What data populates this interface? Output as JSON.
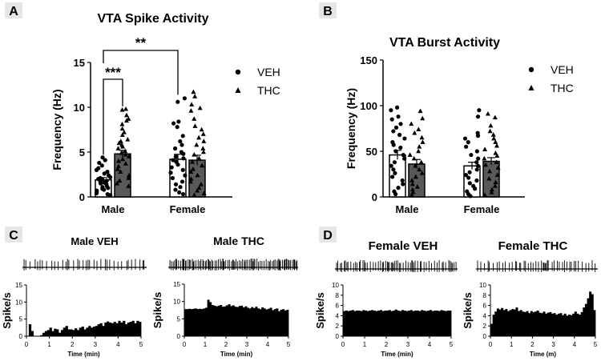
{
  "chart_data": [
    {
      "panel": "A",
      "type": "bar",
      "title": "VTA Spike Activity",
      "ylabel": "Frequency (Hz)",
      "xlabel": "",
      "categories": [
        "Male",
        "Female"
      ],
      "ylim": [
        0,
        15
      ],
      "yticks": [
        0,
        5,
        10,
        15
      ],
      "legend": {
        "placement": "right",
        "entries": [
          {
            "name": "VEH",
            "marker": "circle"
          },
          {
            "name": "THC",
            "marker": "triangle"
          }
        ]
      },
      "series": [
        {
          "name": "VEH",
          "color": "#ffffff",
          "values": [
            1.9,
            4.2
          ],
          "sem": [
            0.25,
            0.55
          ],
          "points": [
            [
              4.4,
              4.1,
              3.8,
              3.5,
              3.2,
              3.0,
              2.8,
              2.6,
              2.4,
              2.2,
              2.1,
              2.0,
              1.9,
              1.8,
              1.7,
              1.6,
              1.5,
              1.4,
              1.2,
              1.1,
              1.0,
              0.9,
              0.8,
              0.7,
              0.5,
              0.4,
              0.3,
              0.2
            ],
            [
              11.0,
              10.6,
              8.4,
              8.2,
              7.8,
              6.8,
              6.2,
              5.8,
              5.4,
              5.0,
              4.8,
              4.5,
              4.3,
              4.1,
              3.9,
              3.6,
              3.3,
              3.0,
              2.7,
              2.4,
              2.1,
              1.7,
              1.4,
              1.1,
              0.8,
              0.5,
              0.3
            ]
          ]
        },
        {
          "name": "THC",
          "color": "#595959",
          "values": [
            4.8,
            4.1
          ],
          "sem": [
            0.4,
            0.55
          ],
          "points": [
            [
              9.8,
              9.7,
              9.1,
              8.7,
              8.5,
              8.1,
              7.6,
              7.2,
              6.9,
              6.4,
              6.2,
              6.0,
              5.8,
              5.6,
              5.4,
              5.1,
              4.9,
              4.7,
              4.5,
              4.2,
              4.0,
              3.7,
              3.4,
              3.1,
              2.8,
              2.4,
              2.1,
              1.8,
              1.5,
              1.2
            ],
            [
              11.7,
              11.2,
              10.3,
              9.9,
              9.6,
              8.7,
              7.9,
              7.5,
              7.0,
              6.6,
              6.2,
              5.8,
              5.4,
              5.0,
              4.7,
              4.3,
              3.9,
              3.5,
              3.1,
              2.8,
              2.4,
              2.0,
              1.7,
              1.4,
              1.0,
              0.7,
              0.4,
              0.2
            ]
          ]
        }
      ],
      "annotations": [
        {
          "text": "***",
          "from": "Male VEH",
          "to": "Male THC"
        },
        {
          "text": "**",
          "from": "Male VEH",
          "to": "Female VEH"
        }
      ]
    },
    {
      "panel": "B",
      "type": "bar",
      "title": "VTA Burst Activity",
      "ylabel": "Frequency (Hz)",
      "xlabel": "",
      "categories": [
        "Male",
        "Female"
      ],
      "ylim": [
        0,
        150
      ],
      "yticks": [
        0,
        50,
        100,
        150
      ],
      "legend": {
        "placement": "right",
        "entries": [
          {
            "name": "VEH",
            "marker": "circle"
          },
          {
            "name": "THC",
            "marker": "triangle"
          }
        ]
      },
      "series": [
        {
          "name": "VEH",
          "color": "#ffffff",
          "values": [
            46,
            34
          ],
          "sem": [
            5,
            4
          ],
          "points": [
            [
              98,
              95,
              88,
              85,
              80,
              76,
              72,
              68,
              64,
              60,
              57,
              54,
              50,
              46,
              42,
              38,
              34,
              30,
              26,
              22,
              18,
              14,
              10,
              6,
              3
            ],
            [
              95,
              88,
              70,
              67,
              64,
              60,
              55,
              50,
              46,
              42,
              38,
              34,
              30,
              27,
              24,
              21,
              18,
              15,
              12,
              9,
              6,
              3,
              1
            ]
          ]
        },
        {
          "name": "THC",
          "color": "#595959",
          "values": [
            36,
            39
          ],
          "sem": [
            5,
            4
          ],
          "points": [
            [
              94,
              86,
              80,
              74,
              70,
              65,
              60,
              55,
              50,
              46,
              42,
              38,
              34,
              30,
              26,
              22,
              18,
              14,
              11,
              8,
              5,
              2
            ],
            [
              91,
              87,
              78,
              72,
              68,
              64,
              60,
              56,
              52,
              48,
              45,
              42,
              38,
              35,
              32,
              28,
              24,
              20,
              16,
              12,
              8,
              5,
              2
            ]
          ]
        }
      ]
    },
    {
      "panel": "C",
      "type": "bar",
      "title": "Male VEH",
      "ylabel": "Spike/s",
      "xlabel": "Time (min)",
      "ylim": [
        0,
        15
      ],
      "yticks": [
        0,
        5,
        10,
        15
      ],
      "xlim": [
        0,
        5
      ],
      "xticks": [
        0,
        1,
        2,
        3,
        4,
        5
      ],
      "bin_width_min": 0.1,
      "values": [
        0,
        3.5,
        1.5,
        0,
        0,
        0,
        0.3,
        1.0,
        1.5,
        1.8,
        2.5,
        1.5,
        2.2,
        2.0,
        1.0,
        1.8,
        2.5,
        3.0,
        2.0,
        2.0,
        1.8,
        2.3,
        1.8,
        2.5,
        2.8,
        2.0,
        2.5,
        3.0,
        2.5,
        2.8,
        3.0,
        3.5,
        3.8,
        3.0,
        4.0,
        4.3,
        4.0,
        3.8,
        4.2,
        3.8,
        4.5,
        4.0,
        4.5,
        3.5,
        4.0,
        4.2,
        4.5,
        3.8,
        4.5,
        4.2
      ]
    },
    {
      "panel": "C",
      "type": "bar",
      "title": "Male THC",
      "ylabel": "Spike/s",
      "xlabel": "Time (min)",
      "ylim": [
        0,
        15
      ],
      "yticks": [
        0,
        5,
        10,
        15
      ],
      "xlim": [
        0,
        5
      ],
      "xticks": [
        0,
        1,
        2,
        3,
        4,
        5
      ],
      "bin_width_min": 0.1,
      "values": [
        7.8,
        7.8,
        7.9,
        7.8,
        7.9,
        8.0,
        7.8,
        7.9,
        7.8,
        8.0,
        8.2,
        10.5,
        9.8,
        9.0,
        8.8,
        8.6,
        8.8,
        9.0,
        8.5,
        8.6,
        8.9,
        9.2,
        8.7,
        8.9,
        8.5,
        8.4,
        8.7,
        8.8,
        8.3,
        8.6,
        8.2,
        8.0,
        8.4,
        8.1,
        8.5,
        8.0,
        7.8,
        8.3,
        8.0,
        7.7,
        7.9,
        8.2,
        7.5,
        7.8,
        8.0,
        7.2,
        7.6,
        7.8,
        7.4,
        7.6
      ]
    },
    {
      "panel": "D",
      "type": "bar",
      "title": "Female VEH",
      "ylabel": "Spike/s",
      "xlabel": "Time (min)",
      "ylim": [
        0,
        10
      ],
      "yticks": [
        0,
        2,
        4,
        6,
        8,
        10
      ],
      "xlim": [
        0,
        5
      ],
      "xticks": [
        0,
        1,
        2,
        3,
        4,
        5
      ],
      "bin_width_min": 0.1,
      "values": [
        4.9,
        5.0,
        4.9,
        5.0,
        5.1,
        4.9,
        5.0,
        5.0,
        4.9,
        5.1,
        5.0,
        4.9,
        5.0,
        5.1,
        5.0,
        4.9,
        5.0,
        5.1,
        4.9,
        5.0,
        5.0,
        5.1,
        4.9,
        5.0,
        5.2,
        5.0,
        4.9,
        5.1,
        5.0,
        4.9,
        5.0,
        5.1,
        4.9,
        5.0,
        5.0,
        4.9,
        5.1,
        5.0,
        4.9,
        5.0,
        5.1,
        4.9,
        5.0,
        5.0,
        4.9,
        5.1,
        5.0,
        4.9,
        5.0,
        5.0
      ]
    },
    {
      "panel": "D",
      "type": "bar",
      "title": "Female  THC",
      "ylabel": "Spike/s",
      "xlabel": "Time (m)",
      "ylim": [
        0,
        10
      ],
      "yticks": [
        0,
        2,
        4,
        6,
        8,
        10
      ],
      "xlim": [
        0,
        5
      ],
      "xticks": [
        0,
        1,
        2,
        3,
        4,
        5
      ],
      "bin_width_min": 0.1,
      "values": [
        2.4,
        4.2,
        4.8,
        5.4,
        5.2,
        5.5,
        5.1,
        5.3,
        4.9,
        5.1,
        5.3,
        5.2,
        5.6,
        4.9,
        5.1,
        4.8,
        4.7,
        4.9,
        4.5,
        4.9,
        4.7,
        4.8,
        5.0,
        4.6,
        4.5,
        4.8,
        4.4,
        4.6,
        4.7,
        4.4,
        4.5,
        4.2,
        4.4,
        4.5,
        4.1,
        4.4,
        4.0,
        4.2,
        4.1,
        4.4,
        4.8,
        4.4,
        4.2,
        4.7,
        5.6,
        6.3,
        7.4,
        8.7,
        8.2,
        5.1
      ]
    }
  ]
}
